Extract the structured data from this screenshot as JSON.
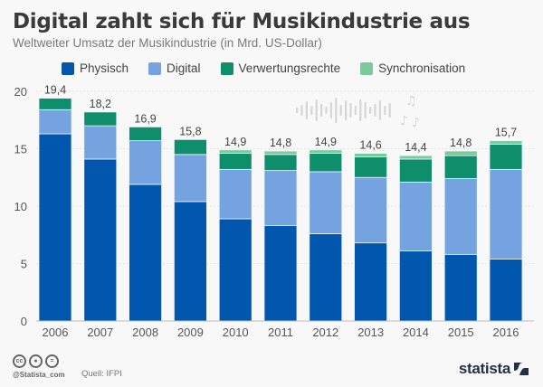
{
  "title": "Digital zahlt sich für Musikindustrie aus",
  "subtitle": "Weltweiter Umsatz der Musikindustrie (in Mrd. US-Dollar)",
  "footer": {
    "handle": "@Statista_com",
    "source": "Quell: IFPI",
    "logo": "statista",
    "cc_icons": [
      "cc-icon",
      "by-icon",
      "nd-icon"
    ]
  },
  "colors": {
    "Physisch": "#0057ad",
    "Digital": "#74a3e0",
    "Verwertungsrechte": "#0f8e6c",
    "Synchronisation": "#7cc99b",
    "grid": "#e4e4e4",
    "axis_text": "#555555"
  },
  "chart_data": {
    "type": "bar",
    "stacked": true,
    "title": "Digital zahlt sich für Musikindustrie aus",
    "subtitle": "Weltweiter Umsatz der Musikindustrie (in Mrd. US-Dollar)",
    "xlabel": "",
    "ylabel": "",
    "ylim": [
      0,
      20
    ],
    "yticks": [
      0,
      5,
      10,
      15,
      20
    ],
    "grid": true,
    "legend_position": "top",
    "categories": [
      "2006",
      "2007",
      "2008",
      "2009",
      "2010",
      "2011",
      "2012",
      "2013",
      "2014",
      "2015",
      "2016"
    ],
    "series": [
      {
        "name": "Physisch",
        "values": [
          16.3,
          14.1,
          11.9,
          10.4,
          8.9,
          8.3,
          7.6,
          6.8,
          6.1,
          5.8,
          5.4
        ]
      },
      {
        "name": "Digital",
        "values": [
          2.1,
          2.9,
          3.8,
          4.1,
          4.3,
          4.8,
          5.4,
          5.7,
          6.0,
          6.6,
          7.8
        ]
      },
      {
        "name": "Verwertungsrechte",
        "values": [
          1.0,
          1.2,
          1.2,
          1.3,
          1.4,
          1.4,
          1.6,
          1.8,
          2.0,
          2.0,
          2.2
        ]
      },
      {
        "name": "Synchronisation",
        "values": [
          0,
          0,
          0,
          0,
          0.3,
          0.3,
          0.3,
          0.3,
          0.3,
          0.4,
          0.3
        ]
      }
    ],
    "totals": [
      "19,4",
      "18,2",
      "16,9",
      "15,8",
      "14,9",
      "14,8",
      "14,9",
      "14,6",
      "14,4",
      "14,8",
      "15,7"
    ]
  }
}
